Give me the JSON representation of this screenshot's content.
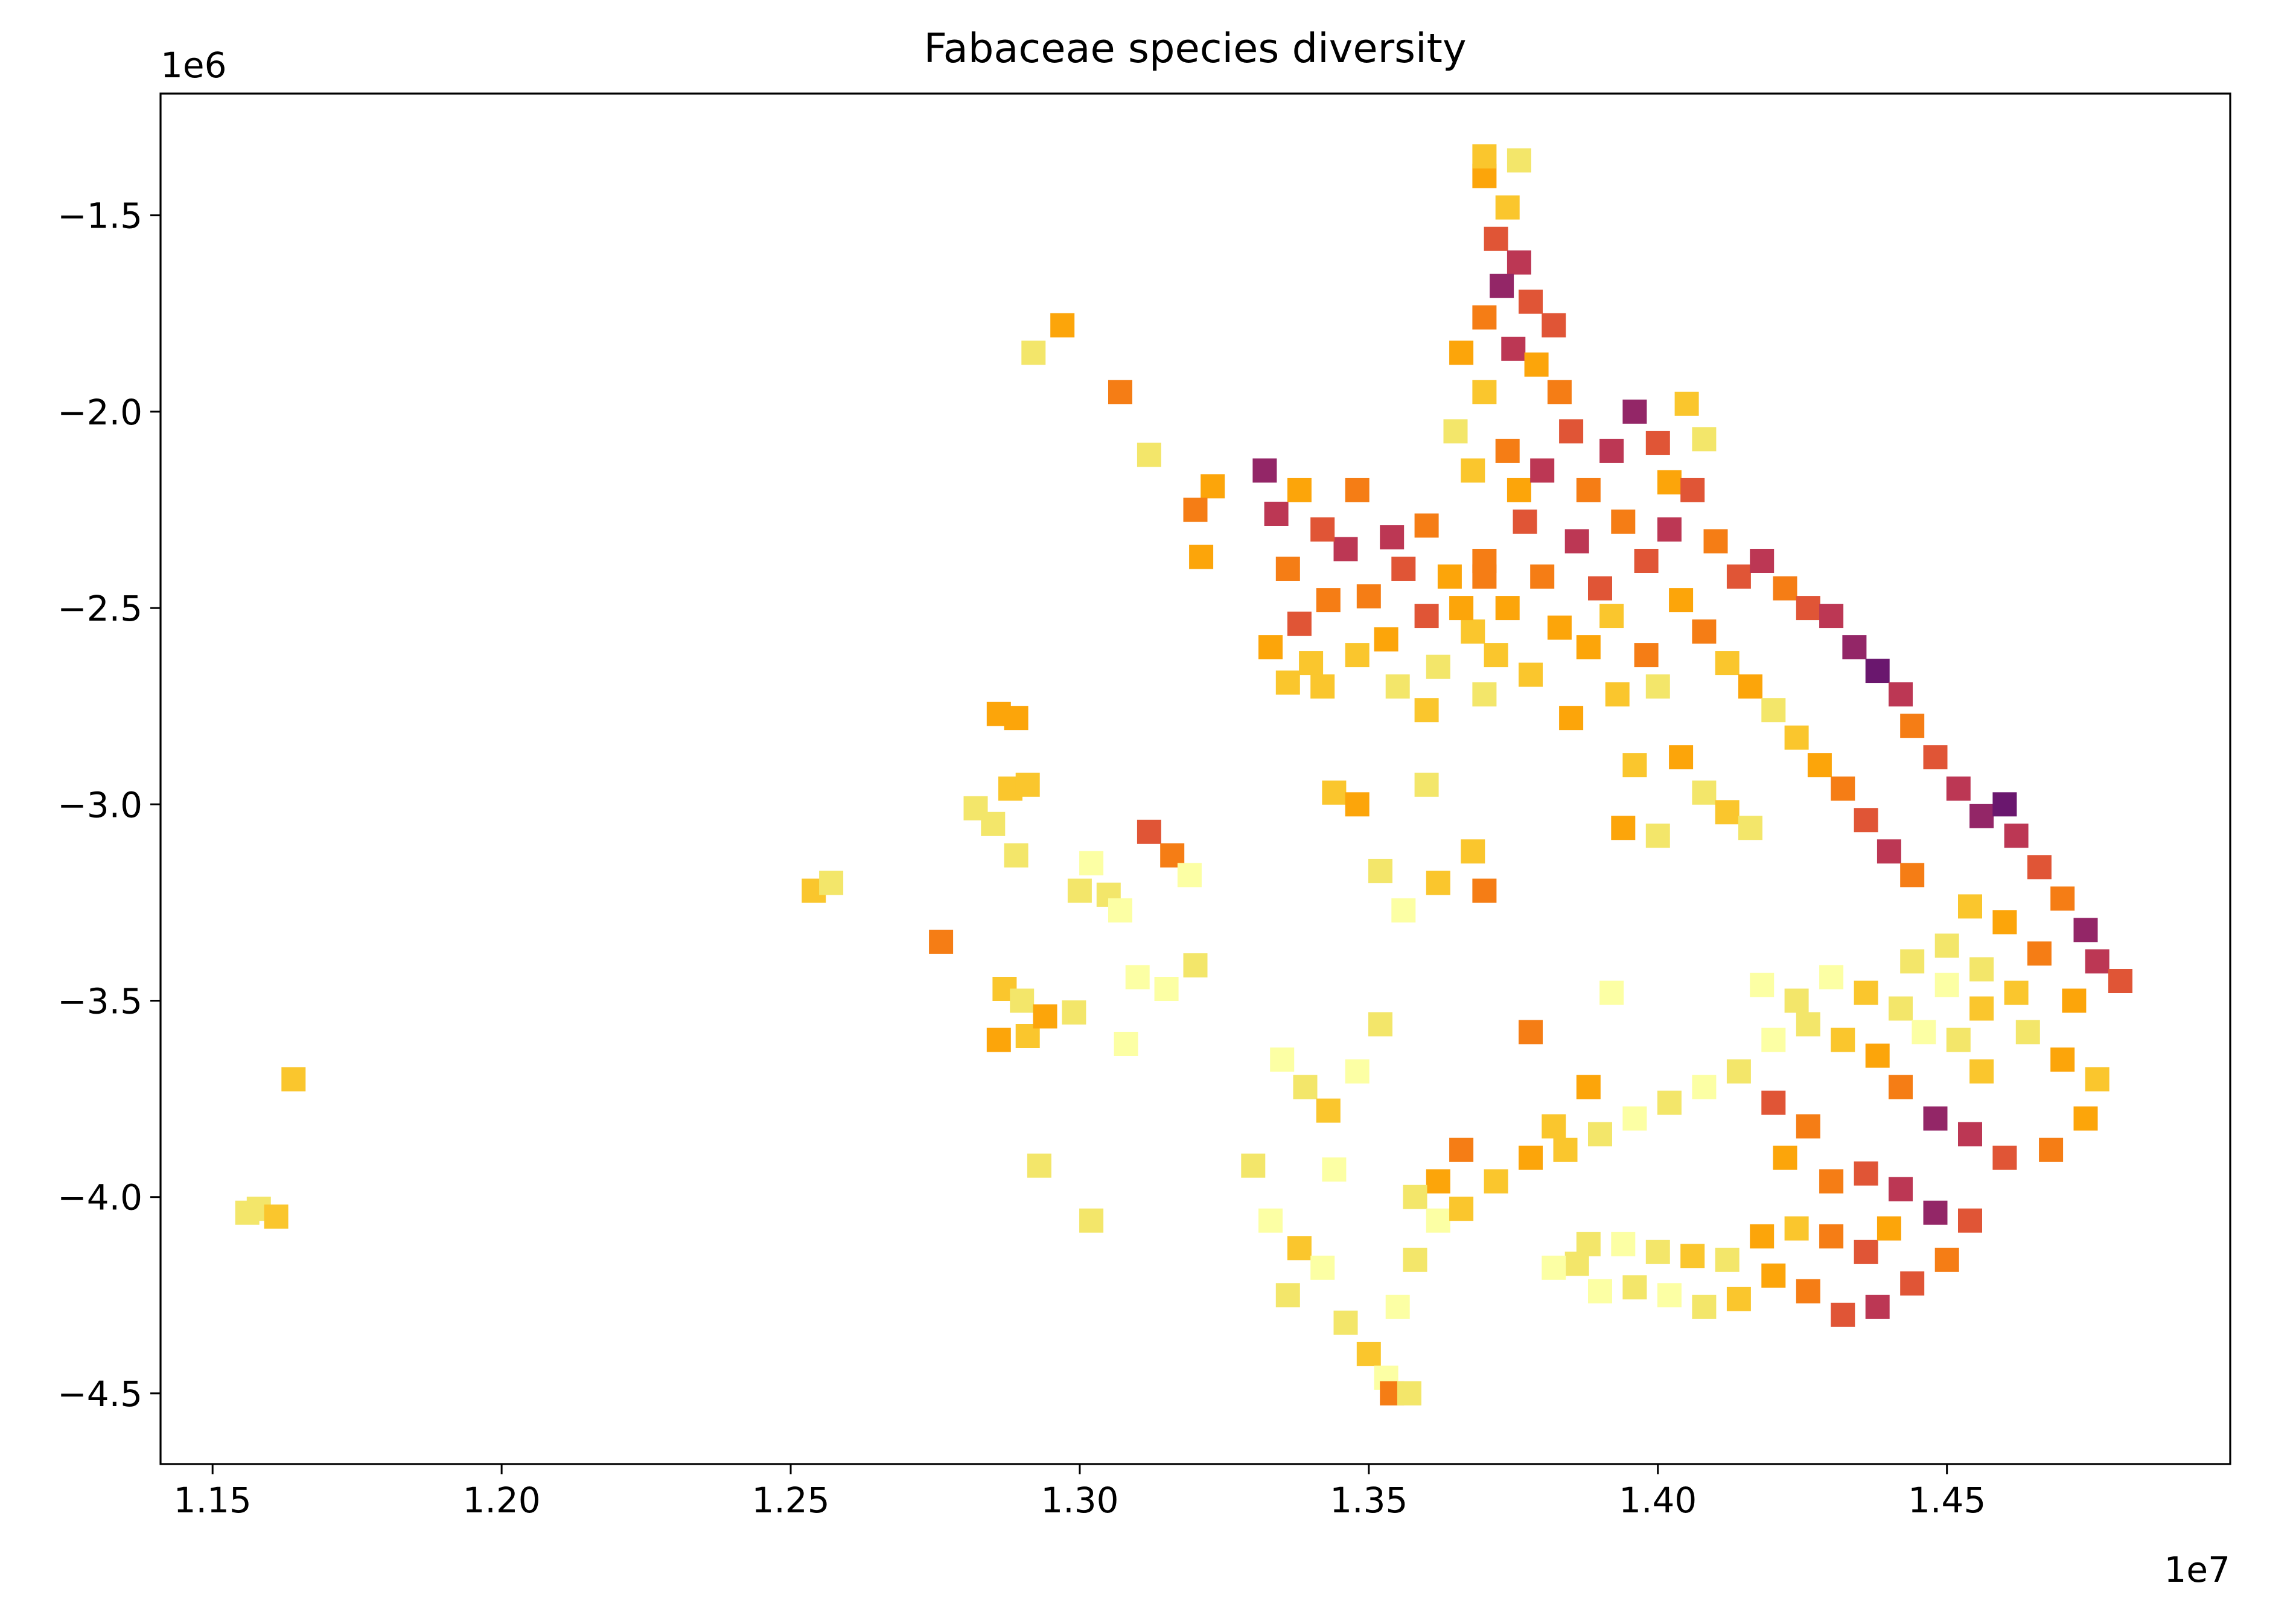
{
  "chart_data": {
    "type": "scatter",
    "title": "Fabaceae species diversity",
    "xlabel": "",
    "ylabel": "",
    "x_offset_label": "1e7",
    "y_offset_label": "1e6",
    "xlim": [
      11410000,
      14990000
    ],
    "ylim": [
      -4680000,
      -1190000
    ],
    "x_ticks": [
      {
        "value": 11500000,
        "label": "1.15"
      },
      {
        "value": 12000000,
        "label": "1.20"
      },
      {
        "value": 12500000,
        "label": "1.25"
      },
      {
        "value": 13000000,
        "label": "1.30"
      },
      {
        "value": 13500000,
        "label": "1.35"
      },
      {
        "value": 14000000,
        "label": "1.40"
      },
      {
        "value": 14500000,
        "label": "1.45"
      }
    ],
    "y_ticks": [
      {
        "value": -1500000,
        "label": "−1.5"
      },
      {
        "value": -2000000,
        "label": "−2.0"
      },
      {
        "value": -2500000,
        "label": "−2.5"
      },
      {
        "value": -3000000,
        "label": "−3.0"
      },
      {
        "value": -3500000,
        "label": "−3.5"
      },
      {
        "value": -4000000,
        "label": "−4.0"
      },
      {
        "value": -4500000,
        "label": "−4.5"
      }
    ],
    "grid": false,
    "legend": "none",
    "colormap": "inferno (yellow = low, purple = high)",
    "palette": [
      "#fcffa4",
      "#f3e66a",
      "#fac62d",
      "#fca50a",
      "#f57d15",
      "#e05536",
      "#bc3754",
      "#932667",
      "#6a176e"
    ],
    "points": [
      [
        11580000,
        -4030000,
        1
      ],
      [
        11610000,
        -4050000,
        2
      ],
      [
        11640000,
        -3700000,
        2
      ],
      [
        11560000,
        -4040000,
        1
      ],
      [
        12540000,
        -3220000,
        2
      ],
      [
        12570000,
        -3200000,
        1
      ],
      [
        12760000,
        -3350000,
        4
      ],
      [
        12820000,
        -3010000,
        1
      ],
      [
        12860000,
        -2770000,
        3
      ],
      [
        12890000,
        -2780000,
        3
      ],
      [
        12880000,
        -2960000,
        2
      ],
      [
        12910000,
        -2950000,
        2
      ],
      [
        12850000,
        -3050000,
        1
      ],
      [
        12890000,
        -3130000,
        1
      ],
      [
        12870000,
        -3470000,
        2
      ],
      [
        12900000,
        -3500000,
        1
      ],
      [
        12860000,
        -3600000,
        3
      ],
      [
        12910000,
        -3590000,
        2
      ],
      [
        12940000,
        -3540000,
        3
      ],
      [
        12990000,
        -3530000,
        1
      ],
      [
        13020000,
        -3150000,
        0
      ],
      [
        13000000,
        -3220000,
        1
      ],
      [
        13050000,
        -3230000,
        1
      ],
      [
        13070000,
        -3270000,
        0
      ],
      [
        13120000,
        -3070000,
        5
      ],
      [
        13160000,
        -3130000,
        4
      ],
      [
        13190000,
        -3180000,
        0
      ],
      [
        13200000,
        -3410000,
        1
      ],
      [
        13150000,
        -3470000,
        0
      ],
      [
        13100000,
        -3440000,
        0
      ],
      [
        13080000,
        -3610000,
        0
      ],
      [
        12930000,
        -3920000,
        1
      ],
      [
        13020000,
        -4060000,
        1
      ],
      [
        12920000,
        -1850000,
        1
      ],
      [
        12970000,
        -1780000,
        3
      ],
      [
        13070000,
        -1950000,
        4
      ],
      [
        13120000,
        -2110000,
        1
      ],
      [
        13230000,
        -2190000,
        3
      ],
      [
        13200000,
        -2250000,
        4
      ],
      [
        13210000,
        -2370000,
        3
      ],
      [
        13320000,
        -2150000,
        7
      ],
      [
        13340000,
        -2260000,
        6
      ],
      [
        13360000,
        -2400000,
        4
      ],
      [
        13380000,
        -2540000,
        5
      ],
      [
        13330000,
        -2600000,
        3
      ],
      [
        13400000,
        -2640000,
        2
      ],
      [
        13430000,
        -2480000,
        4
      ],
      [
        13460000,
        -2350000,
        6
      ],
      [
        13500000,
        -2470000,
        4
      ],
      [
        13530000,
        -2580000,
        3
      ],
      [
        13480000,
        -2620000,
        2
      ],
      [
        13560000,
        -2400000,
        5
      ],
      [
        13600000,
        -2290000,
        4
      ],
      [
        13640000,
        -2420000,
        3
      ],
      [
        13680000,
        -2560000,
        2
      ],
      [
        13620000,
        -2650000,
        1
      ],
      [
        13700000,
        -2380000,
        4
      ],
      [
        13740000,
        -2500000,
        3
      ],
      [
        13770000,
        -2280000,
        5
      ],
      [
        13800000,
        -2420000,
        4
      ],
      [
        13830000,
        -2550000,
        3
      ],
      [
        13860000,
        -2330000,
        6
      ],
      [
        13900000,
        -2450000,
        5
      ],
      [
        13880000,
        -2600000,
        3
      ],
      [
        13360000,
        -2690000,
        2
      ],
      [
        13420000,
        -2700000,
        2
      ],
      [
        13550000,
        -2700000,
        1
      ],
      [
        13600000,
        -2760000,
        2
      ],
      [
        13700000,
        -2720000,
        1
      ],
      [
        13780000,
        -2670000,
        2
      ],
      [
        13850000,
        -2780000,
        3
      ],
      [
        13930000,
        -2720000,
        2
      ],
      [
        13650000,
        -2050000,
        1
      ],
      [
        13700000,
        -1950000,
        2
      ],
      [
        13680000,
        -2150000,
        2
      ],
      [
        13740000,
        -2100000,
        4
      ],
      [
        13760000,
        -2200000,
        3
      ],
      [
        13800000,
        -2150000,
        6
      ],
      [
        13850000,
        -2050000,
        5
      ],
      [
        13880000,
        -2200000,
        4
      ],
      [
        13920000,
        -2100000,
        6
      ],
      [
        13960000,
        -2000000,
        7
      ],
      [
        14000000,
        -2080000,
        5
      ],
      [
        14020000,
        -2180000,
        3
      ],
      [
        13700000,
        -1400000,
        3
      ],
      [
        13740000,
        -1480000,
        2
      ],
      [
        13720000,
        -1560000,
        5
      ],
      [
        13760000,
        -1620000,
        6
      ],
      [
        13730000,
        -1680000,
        7
      ],
      [
        13780000,
        -1720000,
        5
      ],
      [
        13700000,
        -1760000,
        4
      ],
      [
        13750000,
        -1840000,
        6
      ],
      [
        13790000,
        -1880000,
        3
      ],
      [
        13820000,
        -1780000,
        5
      ],
      [
        13830000,
        -1950000,
        4
      ],
      [
        13660000,
        -1850000,
        3
      ],
      [
        13700000,
        -1350000,
        2
      ],
      [
        13760000,
        -1360000,
        1
      ],
      [
        14050000,
        -1980000,
        2
      ],
      [
        14080000,
        -2070000,
        1
      ],
      [
        13940000,
        -2280000,
        4
      ],
      [
        13980000,
        -2380000,
        5
      ],
      [
        14020000,
        -2300000,
        6
      ],
      [
        14060000,
        -2200000,
        5
      ],
      [
        14100000,
        -2330000,
        4
      ],
      [
        14140000,
        -2420000,
        5
      ],
      [
        14180000,
        -2380000,
        6
      ],
      [
        14220000,
        -2450000,
        4
      ],
      [
        14260000,
        -2500000,
        5
      ],
      [
        14300000,
        -2520000,
        6
      ],
      [
        14340000,
        -2600000,
        7
      ],
      [
        14380000,
        -2660000,
        8
      ],
      [
        14420000,
        -2720000,
        6
      ],
      [
        14440000,
        -2800000,
        4
      ],
      [
        14040000,
        -2480000,
        3
      ],
      [
        14080000,
        -2560000,
        4
      ],
      [
        14120000,
        -2640000,
        2
      ],
      [
        14160000,
        -2700000,
        3
      ],
      [
        14200000,
        -2760000,
        1
      ],
      [
        14240000,
        -2830000,
        2
      ],
      [
        14280000,
        -2900000,
        3
      ],
      [
        13920000,
        -2520000,
        2
      ],
      [
        13980000,
        -2620000,
        4
      ],
      [
        14000000,
        -2700000,
        1
      ],
      [
        13960000,
        -2900000,
        2
      ],
      [
        14040000,
        -2880000,
        3
      ],
      [
        14080000,
        -2970000,
        1
      ],
      [
        14120000,
        -3020000,
        2
      ],
      [
        14160000,
        -3060000,
        1
      ],
      [
        13940000,
        -3060000,
        3
      ],
      [
        14000000,
        -3080000,
        1
      ],
      [
        14320000,
        -2960000,
        4
      ],
      [
        14360000,
        -3040000,
        5
      ],
      [
        14400000,
        -3120000,
        6
      ],
      [
        14440000,
        -3180000,
        4
      ],
      [
        14480000,
        -2880000,
        5
      ],
      [
        14520000,
        -2960000,
        6
      ],
      [
        14560000,
        -3030000,
        7
      ],
      [
        14600000,
        -3000000,
        8
      ],
      [
        14620000,
        -3080000,
        6
      ],
      [
        14660000,
        -3160000,
        5
      ],
      [
        14700000,
        -3240000,
        4
      ],
      [
        14740000,
        -3320000,
        7
      ],
      [
        14760000,
        -3400000,
        6
      ],
      [
        14800000,
        -3450000,
        5
      ],
      [
        14720000,
        -3500000,
        3
      ],
      [
        14660000,
        -3380000,
        4
      ],
      [
        14600000,
        -3300000,
        3
      ],
      [
        14540000,
        -3260000,
        2
      ],
      [
        14500000,
        -3360000,
        1
      ],
      [
        14560000,
        -3420000,
        1
      ],
      [
        14620000,
        -3480000,
        2
      ],
      [
        14700000,
        -3650000,
        3
      ],
      [
        14760000,
        -3700000,
        2
      ],
      [
        14740000,
        -3800000,
        3
      ],
      [
        14680000,
        -3880000,
        4
      ],
      [
        14600000,
        -3900000,
        5
      ],
      [
        14540000,
        -3840000,
        6
      ],
      [
        14480000,
        -3800000,
        7
      ],
      [
        14420000,
        -3720000,
        4
      ],
      [
        14380000,
        -3640000,
        3
      ],
      [
        14320000,
        -3600000,
        2
      ],
      [
        14260000,
        -3560000,
        1
      ],
      [
        14200000,
        -3600000,
        0
      ],
      [
        14140000,
        -3680000,
        1
      ],
      [
        14080000,
        -3720000,
        0
      ],
      [
        14020000,
        -3760000,
        1
      ],
      [
        13960000,
        -3800000,
        0
      ],
      [
        13900000,
        -3840000,
        1
      ],
      [
        13840000,
        -3880000,
        2
      ],
      [
        13780000,
        -3900000,
        3
      ],
      [
        13720000,
        -3960000,
        2
      ],
      [
        13660000,
        -3880000,
        4
      ],
      [
        13620000,
        -3960000,
        3
      ],
      [
        13580000,
        -4000000,
        1
      ],
      [
        14200000,
        -3760000,
        5
      ],
      [
        14260000,
        -3820000,
        4
      ],
      [
        14220000,
        -3900000,
        3
      ],
      [
        14300000,
        -3960000,
        4
      ],
      [
        14360000,
        -3940000,
        5
      ],
      [
        14420000,
        -3980000,
        6
      ],
      [
        14480000,
        -4040000,
        7
      ],
      [
        14540000,
        -4060000,
        5
      ],
      [
        14500000,
        -4160000,
        4
      ],
      [
        14440000,
        -4220000,
        5
      ],
      [
        14380000,
        -4280000,
        6
      ],
      [
        14320000,
        -4300000,
        5
      ],
      [
        14260000,
        -4240000,
        4
      ],
      [
        14200000,
        -4200000,
        3
      ],
      [
        14140000,
        -4260000,
        2
      ],
      [
        14080000,
        -4280000,
        1
      ],
      [
        14020000,
        -4250000,
        0
      ],
      [
        13960000,
        -4230000,
        1
      ],
      [
        13900000,
        -4240000,
        0
      ],
      [
        13860000,
        -4170000,
        1
      ],
      [
        13820000,
        -4180000,
        0
      ],
      [
        13880000,
        -4120000,
        1
      ],
      [
        13940000,
        -4120000,
        0
      ],
      [
        14000000,
        -4140000,
        1
      ],
      [
        14060000,
        -4150000,
        2
      ],
      [
        14120000,
        -4160000,
        1
      ],
      [
        14180000,
        -4100000,
        3
      ],
      [
        14240000,
        -4080000,
        2
      ],
      [
        14300000,
        -4100000,
        4
      ],
      [
        14360000,
        -4140000,
        5
      ],
      [
        14400000,
        -4080000,
        3
      ],
      [
        14180000,
        -3460000,
        0
      ],
      [
        14240000,
        -3500000,
        1
      ],
      [
        14300000,
        -3440000,
        0
      ],
      [
        14360000,
        -3480000,
        2
      ],
      [
        14420000,
        -3520000,
        1
      ],
      [
        14460000,
        -3580000,
        0
      ],
      [
        14520000,
        -3600000,
        1
      ],
      [
        14560000,
        -3680000,
        2
      ],
      [
        14440000,
        -3400000,
        1
      ],
      [
        14500000,
        -3460000,
        0
      ],
      [
        14560000,
        -3520000,
        2
      ],
      [
        14640000,
        -3580000,
        1
      ],
      [
        13300000,
        -3920000,
        1
      ],
      [
        13330000,
        -4060000,
        0
      ],
      [
        13380000,
        -4130000,
        2
      ],
      [
        13360000,
        -4250000,
        1
      ],
      [
        13420000,
        -4180000,
        0
      ],
      [
        13460000,
        -4320000,
        1
      ],
      [
        13500000,
        -4400000,
        2
      ],
      [
        13530000,
        -4460000,
        0
      ],
      [
        13540000,
        -4500000,
        4
      ],
      [
        13570000,
        -4500000,
        1
      ],
      [
        13550000,
        -4280000,
        0
      ],
      [
        13580000,
        -4160000,
        1
      ],
      [
        13620000,
        -4060000,
        0
      ],
      [
        13660000,
        -4030000,
        2
      ],
      [
        13390000,
        -3720000,
        1
      ],
      [
        13430000,
        -3780000,
        2
      ],
      [
        13480000,
        -3680000,
        0
      ],
      [
        13520000,
        -3560000,
        1
      ],
      [
        13350000,
        -3650000,
        0
      ],
      [
        13440000,
        -3930000,
        0
      ],
      [
        13440000,
        -2970000,
        2
      ],
      [
        13480000,
        -3000000,
        3
      ],
      [
        13600000,
        -2950000,
        1
      ],
      [
        13620000,
        -3200000,
        2
      ],
      [
        13700000,
        -3220000,
        4
      ],
      [
        13680000,
        -3120000,
        2
      ],
      [
        13560000,
        -3270000,
        0
      ],
      [
        13520000,
        -3170000,
        1
      ],
      [
        13780000,
        -3580000,
        4
      ],
      [
        13820000,
        -3820000,
        2
      ],
      [
        13920000,
        -3480000,
        0
      ],
      [
        13880000,
        -3720000,
        3
      ],
      [
        13660000,
        -2500000,
        3
      ],
      [
        13700000,
        -2420000,
        4
      ],
      [
        13720000,
        -2620000,
        2
      ],
      [
        13600000,
        -2520000,
        5
      ],
      [
        13540000,
        -2320000,
        6
      ],
      [
        13480000,
        -2200000,
        4
      ],
      [
        13420000,
        -2300000,
        5
      ],
      [
        13380000,
        -2200000,
        3
      ]
    ]
  }
}
